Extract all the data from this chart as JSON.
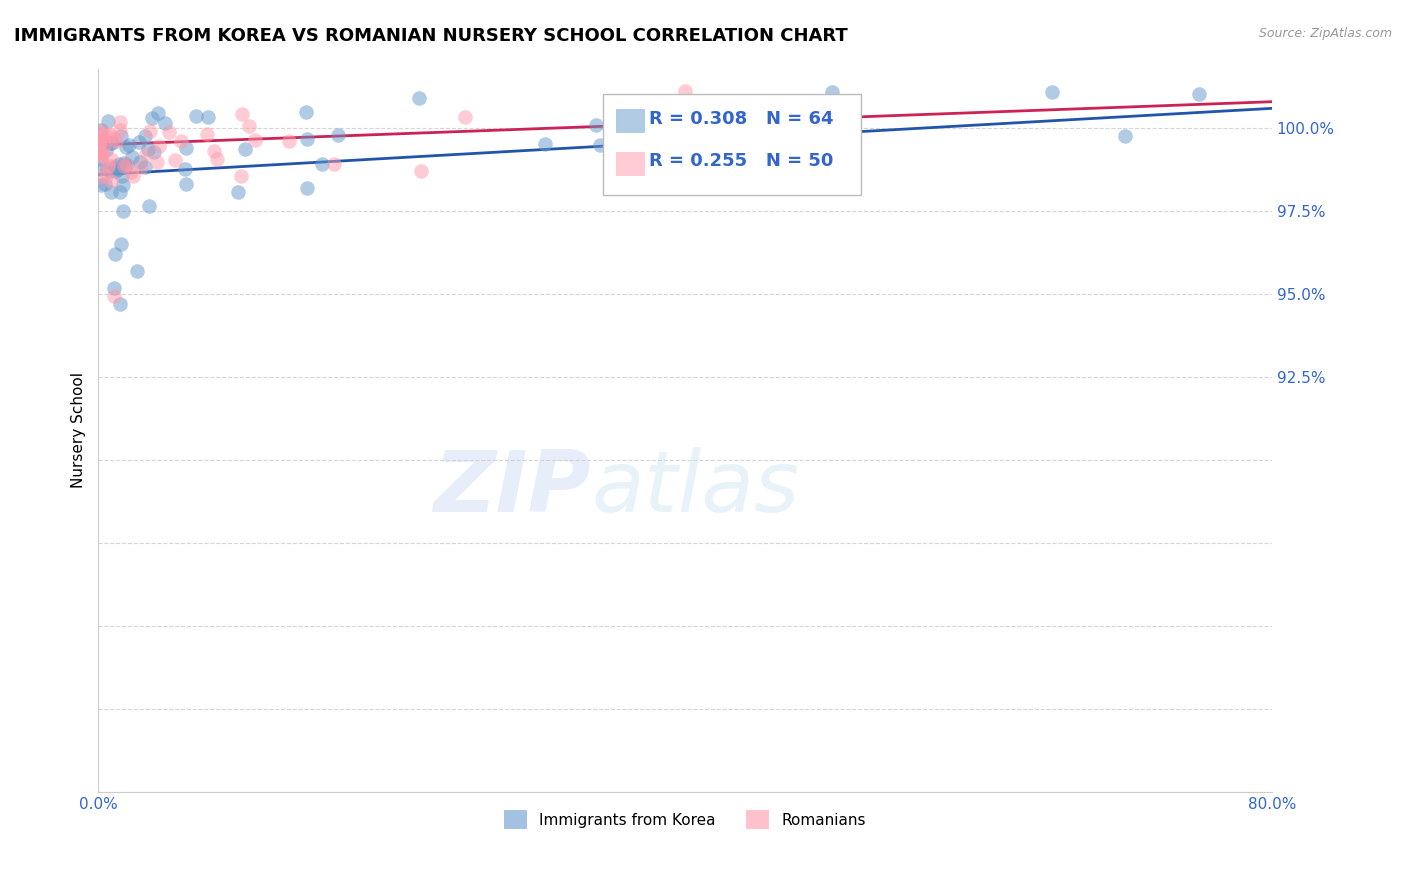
{
  "title": "IMMIGRANTS FROM KOREA VS ROMANIAN NURSERY SCHOOL CORRELATION CHART",
  "source": "Source: ZipAtlas.com",
  "ylabel": "Nursery School",
  "ytick_vals": [
    80.0,
    82.5,
    85.0,
    87.5,
    90.0,
    92.5,
    95.0,
    97.5,
    100.0
  ],
  "ytick_labels": [
    "",
    "",
    "",
    "",
    "",
    "92.5%",
    "95.0%",
    "97.5%",
    "100.0%"
  ],
  "xmin": 0.0,
  "xmax": 80.0,
  "ymin": 80.0,
  "ymax": 101.8,
  "korea_color": "#6699CC",
  "romania_color": "#FF99AA",
  "korea_R": 0.308,
  "korea_N": 64,
  "romania_R": 0.255,
  "romania_N": 50,
  "trendline_korea_color": "#2255AA",
  "trendline_romania_color": "#CC2255",
  "grid_color": "#CCCCCC",
  "axis_label_color": "#3366CC",
  "title_fontsize": 13,
  "axis_fontsize": 10,
  "legend_fontsize": 13,
  "watermark": "ZIPatlas"
}
